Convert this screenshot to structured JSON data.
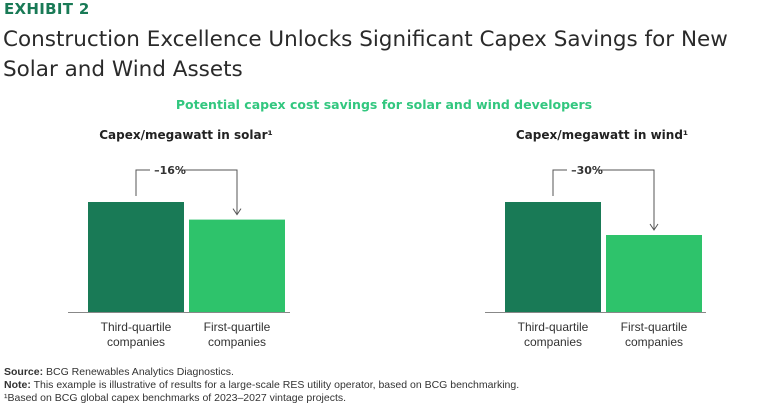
{
  "exhibit_label": "EXHIBIT 2",
  "headline": "Construction Excellence Unlocks Significant Capex Savings for New Solar and Wind Assets",
  "subtitle": "Potential capex cost savings for solar and wind developers",
  "colors": {
    "third_quartile": "#197a56",
    "first_quartile": "#2ec36b",
    "accent": "#197a56"
  },
  "chart_data": [
    {
      "type": "bar",
      "title": "Capex/megawatt in solar¹",
      "categories": [
        "Third-quartile companies",
        "First-quartile companies"
      ],
      "category_lines": [
        [
          "Third-quartile",
          "companies"
        ],
        [
          "First-quartile",
          "companies"
        ]
      ],
      "values": [
        100,
        84
      ],
      "delta_label": "–16%",
      "ylim": [
        0,
        120
      ]
    },
    {
      "type": "bar",
      "title": "Capex/megawatt in wind¹",
      "categories": [
        "Third-quartile companies",
        "First-quartile companies"
      ],
      "category_lines": [
        [
          "Third-quartile",
          "companies"
        ],
        [
          "First-quartile",
          "companies"
        ]
      ],
      "values": [
        100,
        70
      ],
      "delta_label": "–30%",
      "ylim": [
        0,
        120
      ]
    }
  ],
  "notes": {
    "source_label": "Source:",
    "source_text": "BCG Renewables Analytics Diagnostics.",
    "note_label": "Note:",
    "note_text": "This example is illustrative of results for a large-scale RES utility operator, based on BCG benchmarking.",
    "footnote": "¹Based on BCG global capex benchmarks of 2023–2027 vintage projects."
  }
}
